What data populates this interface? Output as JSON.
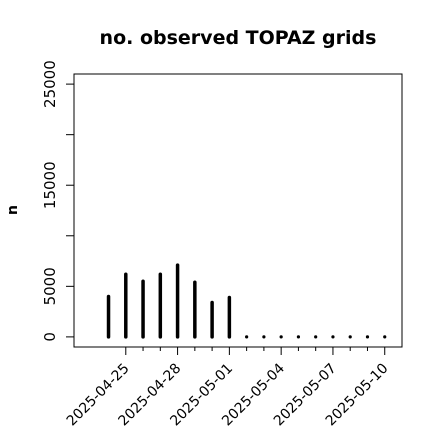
{
  "chart_data": {
    "type": "bar",
    "title": "no. observed TOPAZ grids",
    "xlabel": "",
    "ylabel": "n",
    "ylim": [
      -1000,
      26000
    ],
    "yticks": [
      0,
      5000,
      15000,
      25000
    ],
    "y_minor_ticks": [
      10000,
      20000
    ],
    "x_tick_dates": [
      "2025-04-25",
      "2025-04-28",
      "2025-05-01",
      "2025-05-04",
      "2025-05-07",
      "2025-05-10"
    ],
    "x_minor_tick_dates": [
      "2025-04-26",
      "2025-04-27",
      "2025-04-29",
      "2025-04-30",
      "2025-05-02",
      "2025-05-03",
      "2025-05-05",
      "2025-05-06",
      "2025-05-08",
      "2025-05-09"
    ],
    "x_range": [
      "2025-04-22",
      "2025-05-11"
    ],
    "highlight_tick": "2025-05-01",
    "highlight_color": "#228B22",
    "bar_color": "#000000",
    "grid": false,
    "x": [
      "2025-04-24",
      "2025-04-25",
      "2025-04-26",
      "2025-04-27",
      "2025-04-28",
      "2025-04-29",
      "2025-04-30",
      "2025-05-01",
      "2025-05-02",
      "2025-05-03",
      "2025-05-04",
      "2025-05-05",
      "2025-05-06",
      "2025-05-07",
      "2025-05-08",
      "2025-05-09",
      "2025-05-10"
    ],
    "values": [
      4000,
      6200,
      5500,
      6200,
      7100,
      5400,
      3400,
      3900,
      0,
      0,
      0,
      0,
      0,
      0,
      0,
      0,
      0
    ]
  }
}
